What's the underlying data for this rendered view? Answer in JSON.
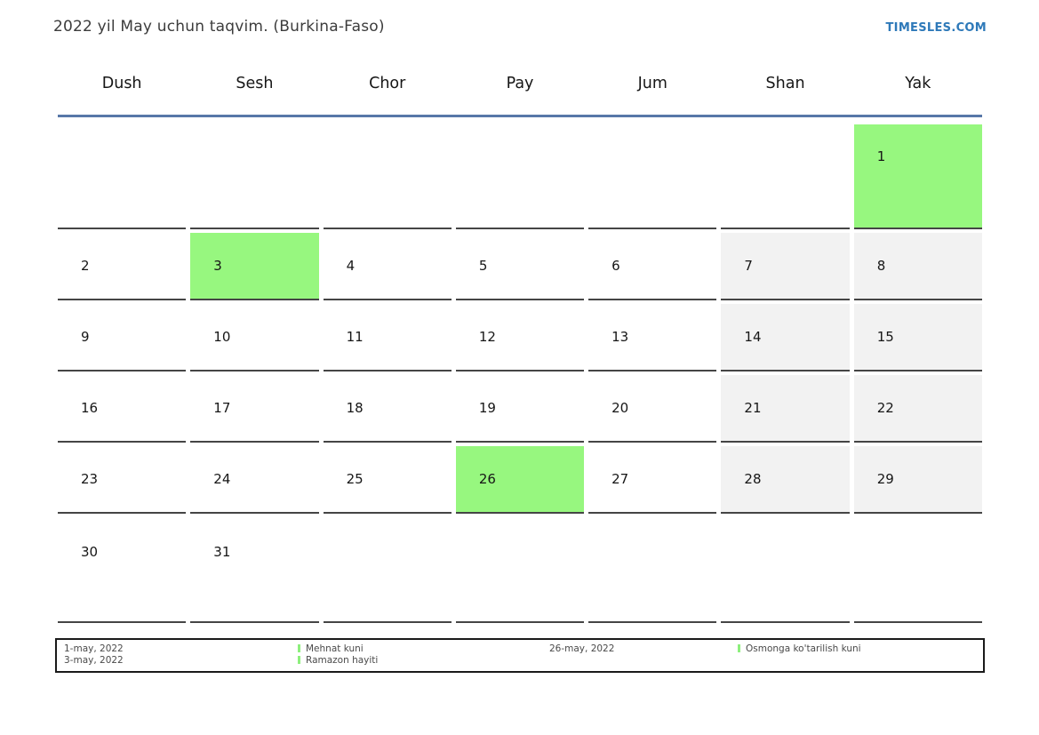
{
  "header": {
    "title": "2022 yil May uchun taqvim. (Burkina-Faso)",
    "site_link": "TIMESLES.COM"
  },
  "calendar": {
    "weekday_headers": [
      "Dush",
      "Sesh",
      "Chor",
      "Pay",
      "Jum",
      "Shan",
      "Yak"
    ],
    "weeks": [
      [
        {
          "day": "",
          "type": "empty"
        },
        {
          "day": "",
          "type": "empty"
        },
        {
          "day": "",
          "type": "empty"
        },
        {
          "day": "",
          "type": "empty"
        },
        {
          "day": "",
          "type": "empty"
        },
        {
          "day": "",
          "type": "empty"
        },
        {
          "day": "1",
          "type": "holiday"
        }
      ],
      [
        {
          "day": "2",
          "type": "workday"
        },
        {
          "day": "3",
          "type": "holiday"
        },
        {
          "day": "4",
          "type": "workday"
        },
        {
          "day": "5",
          "type": "workday"
        },
        {
          "day": "6",
          "type": "workday"
        },
        {
          "day": "7",
          "type": "weekend"
        },
        {
          "day": "8",
          "type": "weekend"
        }
      ],
      [
        {
          "day": "9",
          "type": "workday"
        },
        {
          "day": "10",
          "type": "workday"
        },
        {
          "day": "11",
          "type": "workday"
        },
        {
          "day": "12",
          "type": "workday"
        },
        {
          "day": "13",
          "type": "workday"
        },
        {
          "day": "14",
          "type": "weekend"
        },
        {
          "day": "15",
          "type": "weekend"
        }
      ],
      [
        {
          "day": "16",
          "type": "workday"
        },
        {
          "day": "17",
          "type": "workday"
        },
        {
          "day": "18",
          "type": "workday"
        },
        {
          "day": "19",
          "type": "workday"
        },
        {
          "day": "20",
          "type": "workday"
        },
        {
          "day": "21",
          "type": "weekend"
        },
        {
          "day": "22",
          "type": "weekend"
        }
      ],
      [
        {
          "day": "23",
          "type": "workday"
        },
        {
          "day": "24",
          "type": "workday"
        },
        {
          "day": "25",
          "type": "workday"
        },
        {
          "day": "26",
          "type": "holiday"
        },
        {
          "day": "27",
          "type": "workday"
        },
        {
          "day": "28",
          "type": "weekend"
        },
        {
          "day": "29",
          "type": "weekend"
        }
      ],
      [
        {
          "day": "30",
          "type": "workday"
        },
        {
          "day": "31",
          "type": "workday"
        },
        {
          "day": "",
          "type": "empty"
        },
        {
          "day": "",
          "type": "empty"
        },
        {
          "day": "",
          "type": "empty"
        },
        {
          "day": "",
          "type": "empty"
        },
        {
          "day": "",
          "type": "empty"
        }
      ]
    ]
  },
  "legend": {
    "groups": [
      {
        "dates": [
          "1-may, 2022",
          "3-may, 2022"
        ],
        "items": [
          "Mehnat kuni",
          "Ramazon hayiti"
        ]
      },
      {
        "dates": [
          "26-may, 2022"
        ],
        "items": [
          "Osmonga ko'tarilish kuni"
        ]
      }
    ]
  },
  "colors": {
    "holiday_green": "#97f77f",
    "legend_marker_green": "#8def7d",
    "weekend_gray": "#f2f2f2",
    "header_rule_blue": "#5878a8",
    "link_blue": "#2e79b9",
    "cell_border": "#454545"
  }
}
